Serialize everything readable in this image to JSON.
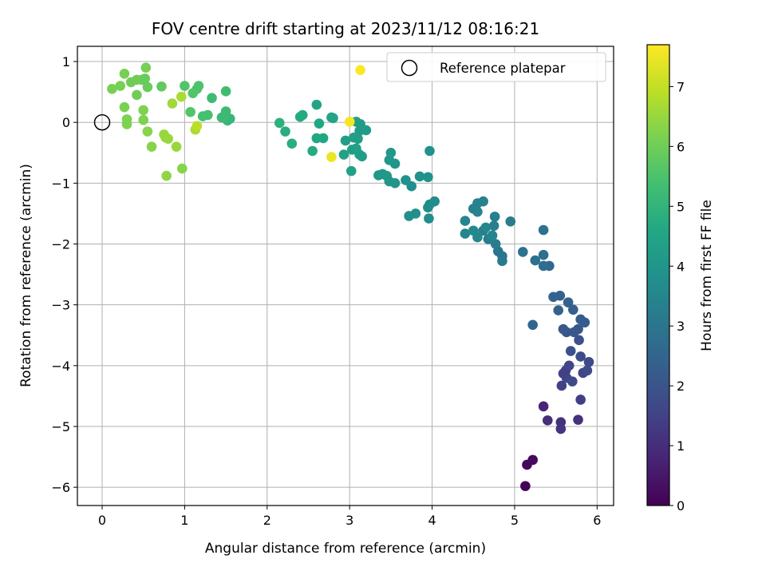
{
  "chart_data": {
    "type": "scatter",
    "title": "FOV centre drift starting at 2023/11/12 08:16:21",
    "xlabel": "Angular distance from reference (arcmin)",
    "ylabel": "Rotation from reference (arcmin)",
    "xlim": [
      -0.3,
      6.2
    ],
    "ylim": [
      -6.3,
      1.25
    ],
    "x_ticks": [
      0,
      1,
      2,
      3,
      4,
      5,
      6
    ],
    "y_ticks": [
      1,
      0,
      -1,
      -2,
      -3,
      -4,
      -5,
      -6
    ],
    "grid": true,
    "legend": {
      "position": "top-right",
      "entries": [
        "Reference platepar"
      ]
    },
    "reference_point": {
      "name": "Reference platepar",
      "x": 0,
      "y": 0,
      "marker": "open-circle"
    },
    "colorbar": {
      "label": "Hours from first FF file",
      "colormap": "viridis",
      "range": [
        0,
        7.7
      ],
      "ticks": [
        0,
        1,
        2,
        3,
        4,
        5,
        6,
        7
      ]
    },
    "points": [
      {
        "x": 5.13,
        "y": -5.98,
        "h": 0.05
      },
      {
        "x": 5.15,
        "y": -5.63,
        "h": 0.15
      },
      {
        "x": 5.22,
        "y": -5.55,
        "h": 0.2
      },
      {
        "x": 5.35,
        "y": -4.67,
        "h": 0.8
      },
      {
        "x": 5.4,
        "y": -4.9,
        "h": 1.0
      },
      {
        "x": 5.56,
        "y": -4.93,
        "h": 1.1
      },
      {
        "x": 5.56,
        "y": -5.04,
        "h": 1.15
      },
      {
        "x": 5.77,
        "y": -4.89,
        "h": 1.1
      },
      {
        "x": 5.8,
        "y": -4.56,
        "h": 1.4
      },
      {
        "x": 5.57,
        "y": -4.33,
        "h": 1.5
      },
      {
        "x": 5.62,
        "y": -4.08,
        "h": 1.5
      },
      {
        "x": 5.63,
        "y": -4.2,
        "h": 1.6
      },
      {
        "x": 5.66,
        "y": -4.0,
        "h": 1.6
      },
      {
        "x": 5.7,
        "y": -4.26,
        "h": 1.7
      },
      {
        "x": 5.59,
        "y": -4.13,
        "h": 1.5
      },
      {
        "x": 5.83,
        "y": -4.12,
        "h": 1.6
      },
      {
        "x": 5.88,
        "y": -4.08,
        "h": 1.7
      },
      {
        "x": 5.9,
        "y": -3.94,
        "h": 1.75
      },
      {
        "x": 5.8,
        "y": -3.85,
        "h": 1.8
      },
      {
        "x": 5.68,
        "y": -3.76,
        "h": 1.9
      },
      {
        "x": 5.78,
        "y": -3.58,
        "h": 1.9
      },
      {
        "x": 5.63,
        "y": -3.45,
        "h": 2.0
      },
      {
        "x": 5.59,
        "y": -3.4,
        "h": 2.1
      },
      {
        "x": 5.72,
        "y": -3.45,
        "h": 2.1
      },
      {
        "x": 5.77,
        "y": -3.4,
        "h": 2.1
      },
      {
        "x": 5.8,
        "y": -3.24,
        "h": 2.2
      },
      {
        "x": 5.85,
        "y": -3.29,
        "h": 2.2
      },
      {
        "x": 5.71,
        "y": -3.08,
        "h": 2.3
      },
      {
        "x": 5.65,
        "y": -2.96,
        "h": 2.4
      },
      {
        "x": 5.55,
        "y": -2.85,
        "h": 2.4
      },
      {
        "x": 5.47,
        "y": -2.87,
        "h": 2.5
      },
      {
        "x": 5.53,
        "y": -3.09,
        "h": 2.4
      },
      {
        "x": 5.22,
        "y": -3.33,
        "h": 2.5
      },
      {
        "x": 5.42,
        "y": -2.36,
        "h": 2.6
      },
      {
        "x": 5.35,
        "y": -2.36,
        "h": 2.7
      },
      {
        "x": 5.35,
        "y": -2.18,
        "h": 2.8
      },
      {
        "x": 5.25,
        "y": -2.27,
        "h": 2.8
      },
      {
        "x": 5.1,
        "y": -2.13,
        "h": 2.9
      },
      {
        "x": 5.35,
        "y": -1.77,
        "h": 2.9
      },
      {
        "x": 4.8,
        "y": -2.12,
        "h": 3.0
      },
      {
        "x": 4.85,
        "y": -2.2,
        "h": 3.0
      },
      {
        "x": 4.85,
        "y": -2.28,
        "h": 3.1
      },
      {
        "x": 4.95,
        "y": -1.63,
        "h": 3.2
      },
      {
        "x": 4.77,
        "y": -2.0,
        "h": 3.2
      },
      {
        "x": 4.68,
        "y": -1.92,
        "h": 3.2
      },
      {
        "x": 4.75,
        "y": -1.7,
        "h": 3.3
      },
      {
        "x": 4.76,
        "y": -1.55,
        "h": 3.3
      },
      {
        "x": 4.62,
        "y": -1.78,
        "h": 3.3
      },
      {
        "x": 4.62,
        "y": -1.3,
        "h": 3.4
      },
      {
        "x": 4.55,
        "y": -1.33,
        "h": 3.4
      },
      {
        "x": 4.5,
        "y": -1.42,
        "h": 3.4
      },
      {
        "x": 4.55,
        "y": -1.47,
        "h": 3.45
      },
      {
        "x": 4.4,
        "y": -1.62,
        "h": 3.5
      },
      {
        "x": 4.4,
        "y": -1.83,
        "h": 3.5
      },
      {
        "x": 4.55,
        "y": -1.89,
        "h": 3.5
      },
      {
        "x": 4.65,
        "y": -1.73,
        "h": 3.5
      },
      {
        "x": 4.73,
        "y": -1.86,
        "h": 3.5
      },
      {
        "x": 4.5,
        "y": -1.78,
        "h": 3.6
      },
      {
        "x": 4.03,
        "y": -1.3,
        "h": 3.7
      },
      {
        "x": 3.97,
        "y": -1.35,
        "h": 3.7
      },
      {
        "x": 3.96,
        "y": -1.58,
        "h": 3.7
      },
      {
        "x": 3.95,
        "y": -1.4,
        "h": 3.75
      },
      {
        "x": 3.8,
        "y": -1.5,
        "h": 3.8
      },
      {
        "x": 3.72,
        "y": -1.54,
        "h": 3.8
      },
      {
        "x": 3.75,
        "y": -1.05,
        "h": 3.8
      },
      {
        "x": 3.68,
        "y": -0.95,
        "h": 3.9
      },
      {
        "x": 3.85,
        "y": -0.89,
        "h": 3.9
      },
      {
        "x": 3.95,
        "y": -0.9,
        "h": 3.9
      },
      {
        "x": 3.97,
        "y": -0.47,
        "h": 3.9
      },
      {
        "x": 3.55,
        "y": -1.0,
        "h": 4.0
      },
      {
        "x": 3.48,
        "y": -0.97,
        "h": 4.0
      },
      {
        "x": 3.55,
        "y": -0.68,
        "h": 4.0
      },
      {
        "x": 3.48,
        "y": -0.62,
        "h": 4.1
      },
      {
        "x": 3.5,
        "y": -0.5,
        "h": 4.1
      },
      {
        "x": 3.35,
        "y": -0.87,
        "h": 4.1
      },
      {
        "x": 3.4,
        "y": -0.85,
        "h": 4.1
      },
      {
        "x": 3.45,
        "y": -0.88,
        "h": 4.1
      },
      {
        "x": 3.2,
        "y": -0.13,
        "h": 4.2
      },
      {
        "x": 3.12,
        "y": -0.14,
        "h": 4.2
      },
      {
        "x": 3.13,
        "y": -0.03,
        "h": 4.2
      },
      {
        "x": 3.08,
        "y": 0.01,
        "h": 4.3
      },
      {
        "x": 3.1,
        "y": -0.27,
        "h": 4.3
      },
      {
        "x": 3.05,
        "y": -0.25,
        "h": 4.3
      },
      {
        "x": 2.95,
        "y": -0.3,
        "h": 4.3
      },
      {
        "x": 3.03,
        "y": -0.45,
        "h": 4.3
      },
      {
        "x": 3.12,
        "y": -0.53,
        "h": 4.3
      },
      {
        "x": 3.15,
        "y": -0.56,
        "h": 4.3
      },
      {
        "x": 3.08,
        "y": -0.43,
        "h": 4.35
      },
      {
        "x": 2.93,
        "y": -0.53,
        "h": 4.4
      },
      {
        "x": 3.02,
        "y": -0.8,
        "h": 4.4
      },
      {
        "x": 2.78,
        "y": 0.08,
        "h": 4.5
      },
      {
        "x": 2.8,
        "y": 0.07,
        "h": 4.5
      },
      {
        "x": 2.6,
        "y": 0.29,
        "h": 4.5
      },
      {
        "x": 2.63,
        "y": -0.02,
        "h": 4.6
      },
      {
        "x": 2.68,
        "y": -0.26,
        "h": 4.6
      },
      {
        "x": 2.6,
        "y": -0.26,
        "h": 4.6
      },
      {
        "x": 2.55,
        "y": -0.47,
        "h": 4.7
      },
      {
        "x": 2.4,
        "y": 0.09,
        "h": 4.7
      },
      {
        "x": 2.43,
        "y": 0.12,
        "h": 4.7
      },
      {
        "x": 2.3,
        "y": -0.35,
        "h": 4.8
      },
      {
        "x": 2.22,
        "y": -0.15,
        "h": 4.8
      },
      {
        "x": 2.15,
        "y": -0.01,
        "h": 4.9
      },
      {
        "x": 1.55,
        "y": 0.06,
        "h": 5.1
      },
      {
        "x": 1.52,
        "y": 0.03,
        "h": 5.1
      },
      {
        "x": 1.5,
        "y": 0.18,
        "h": 5.2
      },
      {
        "x": 1.48,
        "y": 0.1,
        "h": 5.2
      },
      {
        "x": 1.45,
        "y": 0.08,
        "h": 5.2
      },
      {
        "x": 1.5,
        "y": 0.51,
        "h": 5.3
      },
      {
        "x": 1.33,
        "y": 0.4,
        "h": 5.3
      },
      {
        "x": 1.28,
        "y": 0.12,
        "h": 5.4
      },
      {
        "x": 1.22,
        "y": 0.1,
        "h": 5.4
      },
      {
        "x": 1.17,
        "y": 0.6,
        "h": 5.5
      },
      {
        "x": 1.15,
        "y": 0.55,
        "h": 5.5
      },
      {
        "x": 1.1,
        "y": 0.48,
        "h": 5.6
      },
      {
        "x": 1.0,
        "y": 0.6,
        "h": 5.6
      },
      {
        "x": 1.07,
        "y": 0.17,
        "h": 5.6
      },
      {
        "x": 0.72,
        "y": 0.59,
        "h": 5.8
      },
      {
        "x": 0.55,
        "y": 0.58,
        "h": 5.9
      },
      {
        "x": 0.52,
        "y": 0.72,
        "h": 5.9
      },
      {
        "x": 0.48,
        "y": 0.7,
        "h": 5.9
      },
      {
        "x": 0.42,
        "y": 0.7,
        "h": 6.0
      },
      {
        "x": 0.42,
        "y": 0.45,
        "h": 6.0
      },
      {
        "x": 0.35,
        "y": 0.66,
        "h": 6.0
      },
      {
        "x": 0.27,
        "y": 0.8,
        "h": 6.1
      },
      {
        "x": 0.22,
        "y": 0.6,
        "h": 6.1
      },
      {
        "x": 0.12,
        "y": 0.55,
        "h": 6.1
      },
      {
        "x": 0.53,
        "y": 0.9,
        "h": 6.1
      },
      {
        "x": 0.27,
        "y": 0.25,
        "h": 6.15
      },
      {
        "x": 0.3,
        "y": 0.05,
        "h": 6.2
      },
      {
        "x": 0.3,
        "y": -0.03,
        "h": 6.2
      },
      {
        "x": 0.5,
        "y": 0.2,
        "h": 6.2
      },
      {
        "x": 0.5,
        "y": 0.04,
        "h": 6.2
      },
      {
        "x": 0.55,
        "y": -0.15,
        "h": 6.3
      },
      {
        "x": 0.6,
        "y": -0.4,
        "h": 6.3
      },
      {
        "x": 0.97,
        "y": -0.76,
        "h": 6.3
      },
      {
        "x": 0.78,
        "y": -0.88,
        "h": 6.4
      },
      {
        "x": 0.75,
        "y": -0.2,
        "h": 6.5
      },
      {
        "x": 0.77,
        "y": -0.25,
        "h": 6.5
      },
      {
        "x": 0.8,
        "y": -0.27,
        "h": 6.5
      },
      {
        "x": 0.9,
        "y": -0.4,
        "h": 6.5
      },
      {
        "x": 0.85,
        "y": 0.31,
        "h": 6.6
      },
      {
        "x": 0.96,
        "y": 0.42,
        "h": 6.7
      },
      {
        "x": 1.13,
        "y": -0.12,
        "h": 6.7
      },
      {
        "x": 1.15,
        "y": -0.06,
        "h": 6.9
      },
      {
        "x": 2.78,
        "y": -0.57,
        "h": 7.5
      },
      {
        "x": 3.0,
        "y": 0.01,
        "h": 7.6
      },
      {
        "x": 3.13,
        "y": 0.86,
        "h": 7.7
      }
    ]
  }
}
